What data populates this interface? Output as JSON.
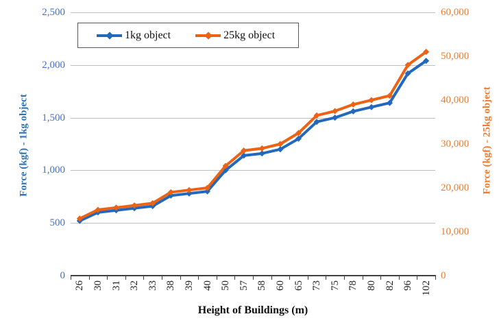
{
  "chart_data": {
    "type": "line",
    "title": "",
    "xlabel": "Height of Buildings (m)",
    "ylabel_left": "Force (kgf) - 1kg object",
    "ylabel_right": "Force (kgf) - 25kg object",
    "categories": [
      26,
      30,
      31,
      32,
      33,
      38,
      39,
      40,
      50,
      57,
      58,
      60,
      65,
      73,
      75,
      78,
      80,
      82,
      96,
      102
    ],
    "series": [
      {
        "name": "1kg object",
        "axis": "left",
        "color": "#2268be",
        "marker": "diamond",
        "values": [
          520,
          600,
          620,
          640,
          660,
          760,
          780,
          800,
          1000,
          1140,
          1160,
          1200,
          1300,
          1460,
          1500,
          1560,
          1600,
          1640,
          1920,
          2040
        ]
      },
      {
        "name": "25kg object",
        "axis": "right",
        "color": "#ec6316",
        "marker": "diamond",
        "values": [
          13000,
          15000,
          15500,
          16000,
          16500,
          19000,
          19500,
          20000,
          25000,
          28500,
          29000,
          30000,
          32500,
          36500,
          37500,
          39000,
          40000,
          41000,
          48000,
          51000
        ]
      }
    ],
    "left_axis": {
      "range": [
        0,
        2500
      ],
      "tick_values": [
        0,
        500,
        1000,
        1500,
        2000,
        2500
      ],
      "tick_labels": [
        "0",
        "500",
        "1,000",
        "1,500",
        "2,000",
        "2,500"
      ],
      "color": "#4472c4"
    },
    "right_axis": {
      "range": [
        0,
        60000
      ],
      "tick_values": [
        0,
        10000,
        20000,
        30000,
        40000,
        50000,
        60000
      ],
      "tick_labels": [
        "0",
        "10,000",
        "20,000",
        "30,000",
        "40,000",
        "50,000",
        "60,000"
      ],
      "color": "#ed7d31"
    },
    "grid": true,
    "gridline_color": "#bfbfbf",
    "axis_line_color": "#404040",
    "legend_position": "top-inside"
  }
}
